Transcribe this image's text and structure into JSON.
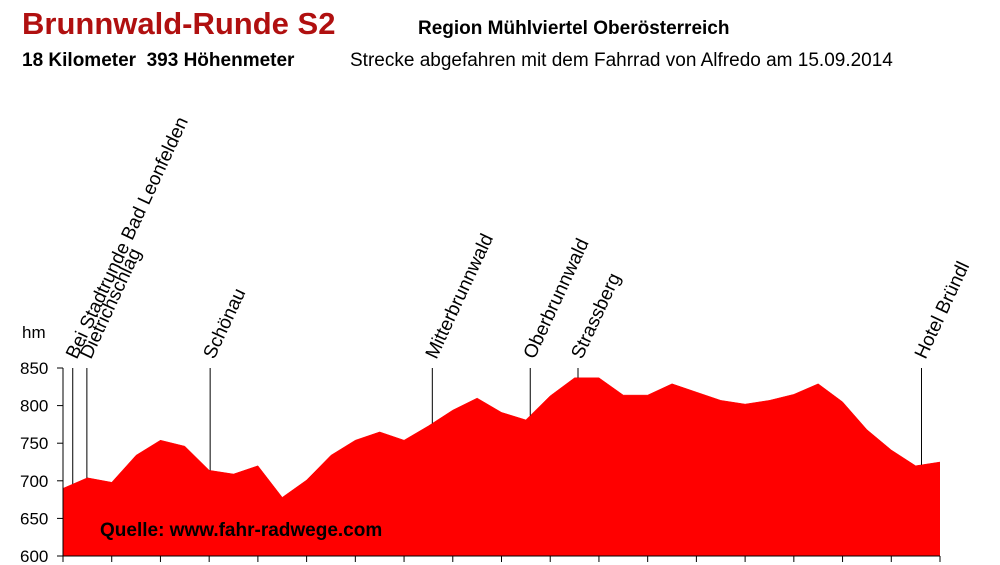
{
  "chart_data": {
    "type": "area",
    "title": "Brunnwald-Runde S2",
    "subtitle": "Region Mühlviertel Oberösterreich",
    "stats": "18 Kilometer  393 Höhenmeter",
    "description": "Strecke abgefahren mit dem Fahrrad von Alfredo am 15.09.2014",
    "y_label": "hm",
    "source": "Quelle: www.fahr-radwege.com",
    "color": "#ff0000",
    "xlim": [
      0,
      18
    ],
    "xticks": [
      0,
      1,
      2,
      3,
      4,
      5,
      6,
      7,
      8,
      9,
      10,
      11,
      12,
      13,
      14,
      15,
      16,
      17,
      18
    ],
    "ylim": [
      600,
      850
    ],
    "yticks": [
      600,
      650,
      700,
      750,
      800,
      850
    ],
    "x": [
      0,
      0.5,
      1,
      1.5,
      2,
      2.5,
      3,
      3.5,
      4,
      4.5,
      5,
      5.5,
      6,
      6.5,
      7,
      7.5,
      8,
      8.5,
      9,
      9.5,
      10,
      10.5,
      11,
      11.5,
      12,
      12.5,
      13,
      13.5,
      14,
      14.5,
      15,
      15.5,
      16,
      16.5,
      17,
      17.5,
      18
    ],
    "values": [
      690,
      704,
      698,
      734,
      754,
      746,
      714,
      709,
      720,
      678,
      701,
      734,
      754,
      765,
      754,
      773,
      794,
      810,
      791,
      781,
      813,
      837,
      837,
      814,
      814,
      829,
      818,
      807,
      802,
      807,
      815,
      829,
      805,
      768,
      741,
      720,
      725
    ],
    "waypoints": [
      {
        "label": "Bei Stadtrunde Bad Leonfelden",
        "x": 0.2
      },
      {
        "label": "Dietrichschlag",
        "x": 0.49
      },
      {
        "label": "Schönau",
        "x": 3.02
      },
      {
        "label": "Mitterbrunnwald",
        "x": 7.58
      },
      {
        "label": "Oberbrunnwald",
        "x": 9.59
      },
      {
        "label": "Strassberg",
        "x": 10.57
      },
      {
        "label": "Hotel Bründl",
        "x": 17.62
      }
    ]
  }
}
